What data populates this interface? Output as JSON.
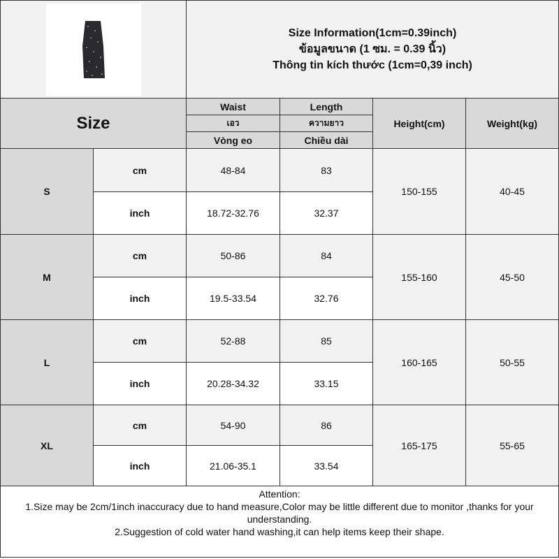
{
  "title_lines": [
    "Size Information(1cm=0.39inch)",
    "ข้อมูลขนาด (1 ซม. = 0.39 นิ้ว)",
    "Thông tin kích thước (1cm=0,39 inch)"
  ],
  "header": {
    "size": "Size",
    "waist": [
      "Waist",
      "เอว",
      "Vòng eo"
    ],
    "length": [
      "Length",
      "ความยาว",
      "Chiều dài"
    ],
    "height": "Height(cm)",
    "weight": "Weight(kg)"
  },
  "product_image": "black-floral-skirt",
  "sizes": [
    {
      "size": "S",
      "cm_label": "cm",
      "inch_label": "inch",
      "waist_cm": "48-84",
      "length_cm": "83",
      "waist_inch": "18.72-32.76",
      "length_inch": "32.37",
      "height": "150-155",
      "weight": "40-45"
    },
    {
      "size": "M",
      "cm_label": "cm",
      "inch_label": "inch",
      "waist_cm": "50-86",
      "length_cm": "84",
      "waist_inch": "19.5-33.54",
      "length_inch": "32.76",
      "height": "155-160",
      "weight": "45-50"
    },
    {
      "size": "L",
      "cm_label": "cm",
      "inch_label": "inch",
      "waist_cm": "52-88",
      "length_cm": "85",
      "waist_inch": "20.28-34.32",
      "length_inch": "33.15",
      "height": "160-165",
      "weight": "50-55"
    },
    {
      "size": "XL",
      "cm_label": "cm",
      "inch_label": "inch",
      "waist_cm": "54-90",
      "length_cm": "86",
      "waist_inch": "21.06-35.1",
      "length_inch": "33.54",
      "height": "165-175",
      "weight": "55-65"
    }
  ],
  "attention": {
    "heading": "Attention:",
    "note1": "1.Size may be 2cm/1inch inaccuracy due to hand measure,Color may be little different due to monitor ,thanks for your understanding.",
    "note2": "2.Suggestion of cold water hand washing,it can help items keep their shape."
  }
}
